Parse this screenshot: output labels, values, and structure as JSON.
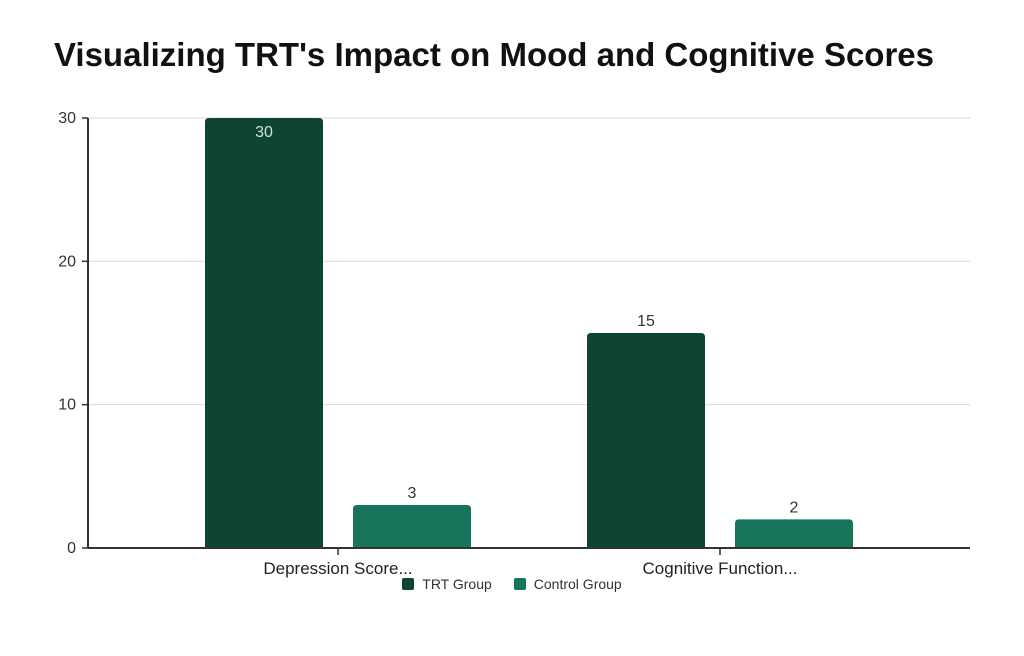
{
  "title": "Visualizing TRT's Impact on Mood and Cognitive Scores",
  "chart_data": {
    "type": "bar",
    "title": "Visualizing TRT's Impact on Mood and Cognitive Scores",
    "categories": [
      "Depression Score...",
      "Cognitive Function..."
    ],
    "series": [
      {
        "name": "TRT Group",
        "values": [
          30,
          15
        ],
        "color": "#0e4430"
      },
      {
        "name": "Control Group",
        "values": [
          3,
          2
        ],
        "color": "#17745a"
      }
    ],
    "xlabel": "",
    "ylabel": "",
    "ylim": [
      0,
      30
    ],
    "yticks": [
      0,
      10,
      20,
      30
    ],
    "grid": true,
    "legend_position": "bottom"
  }
}
